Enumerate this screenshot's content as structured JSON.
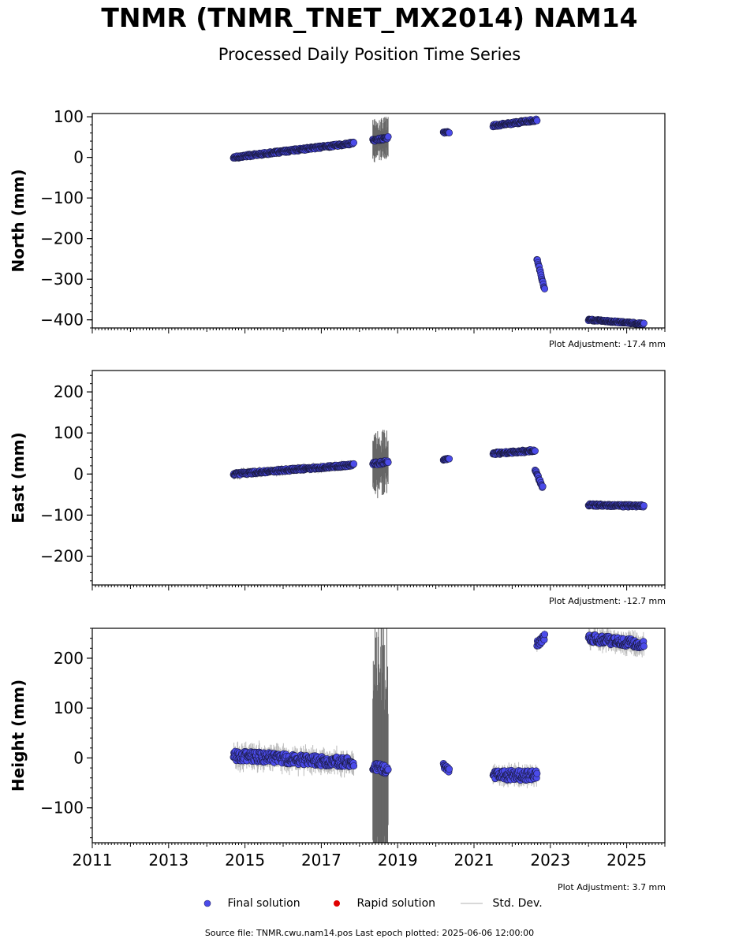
{
  "title": "TNMR (TNMR_TNET_MX2014) NAM14",
  "subtitle": "Processed Daily Position Time Series",
  "legend": {
    "final": "Final solution",
    "rapid": "Rapid solution",
    "std": "Std. Dev."
  },
  "source_text": "Source file: TNMR.cwu.nam14.pos  Last epoch plotted: 2025-06-06 12:00:00",
  "colors": {
    "final": "#4b4bea",
    "rapid": "#e00000",
    "std": "#888888"
  },
  "chart_data": [
    {
      "type": "scatter",
      "ylabel": "North (mm)",
      "adjustment": "Plot Adjustment: -17.4 mm",
      "xlim": [
        2011,
        2026
      ],
      "ylim": [
        -420,
        108
      ],
      "yticks": [
        100,
        0,
        -100,
        -200,
        -300,
        -400
      ],
      "ytick_labels": [
        "100",
        "0",
        "−100",
        "−200",
        "−300",
        "−400"
      ],
      "segments": [
        {
          "x0": 2014.7,
          "x1": 2017.85,
          "y0": 0,
          "y1": 35,
          "noise": 3,
          "err": 8
        },
        {
          "x0": 2018.35,
          "x1": 2018.75,
          "y0": 42,
          "y1": 48,
          "noise": 3,
          "err": 45
        },
        {
          "x0": 2020.2,
          "x1": 2020.35,
          "y0": 62,
          "y1": 62,
          "noise": 2,
          "err": 4
        },
        {
          "x0": 2021.5,
          "x1": 2022.65,
          "y0": 78,
          "y1": 92,
          "noise": 3,
          "err": 5
        },
        {
          "x0": 2022.65,
          "x1": 2022.85,
          "y0": -250,
          "y1": -325,
          "noise": 3,
          "err": 5
        },
        {
          "x0": 2024.0,
          "x1": 2025.45,
          "y0": -400,
          "y1": -410,
          "noise": 2,
          "err": 4
        }
      ]
    },
    {
      "type": "scatter",
      "ylabel": "East (mm)",
      "adjustment": "Plot Adjustment: -12.7 mm",
      "xlim": [
        2011,
        2026
      ],
      "ylim": [
        -270,
        252
      ],
      "yticks": [
        200,
        100,
        0,
        -100,
        -200
      ],
      "ytick_labels": [
        "200",
        "100",
        "0",
        "−100",
        "−200"
      ],
      "segments": [
        {
          "x0": 2014.7,
          "x1": 2017.85,
          "y0": 0,
          "y1": 22,
          "noise": 3,
          "err": 10
        },
        {
          "x0": 2018.35,
          "x1": 2018.75,
          "y0": 25,
          "y1": 30,
          "noise": 4,
          "err": 70
        },
        {
          "x0": 2020.2,
          "x1": 2020.35,
          "y0": 35,
          "y1": 37,
          "noise": 2,
          "err": 4
        },
        {
          "x0": 2021.5,
          "x1": 2022.6,
          "y0": 50,
          "y1": 57,
          "noise": 3,
          "err": 5
        },
        {
          "x0": 2022.6,
          "x1": 2022.8,
          "y0": 10,
          "y1": -33,
          "noise": 3,
          "err": 5
        },
        {
          "x0": 2024.0,
          "x1": 2025.45,
          "y0": -75,
          "y1": -78,
          "noise": 3,
          "err": 4
        }
      ]
    },
    {
      "type": "scatter",
      "ylabel": "Height (mm)",
      "adjustment": "Plot Adjustment: 3.7 mm",
      "xlim": [
        2011,
        2026
      ],
      "ylim": [
        -170,
        260
      ],
      "yticks": [
        200,
        100,
        0,
        -100
      ],
      "ytick_labels": [
        "200",
        "100",
        "0",
        "−100"
      ],
      "xticks": [
        2011,
        2013,
        2015,
        2017,
        2019,
        2021,
        2023,
        2025
      ],
      "xtick_labels": [
        "2011",
        "2013",
        "2015",
        "2017",
        "2019",
        "2021",
        "2023",
        "2025"
      ],
      "segments": [
        {
          "x0": 2014.7,
          "x1": 2017.85,
          "y0": 5,
          "y1": -10,
          "noise": 10,
          "err": 20
        },
        {
          "x0": 2018.35,
          "x1": 2018.75,
          "y0": -15,
          "y1": -25,
          "noise": 8,
          "err": 260
        },
        {
          "x0": 2020.2,
          "x1": 2020.35,
          "y0": -15,
          "y1": -25,
          "noise": 4,
          "err": 6
        },
        {
          "x0": 2021.5,
          "x1": 2022.65,
          "y0": -35,
          "y1": -35,
          "noise": 10,
          "err": 15
        },
        {
          "x0": 2022.65,
          "x1": 2022.85,
          "y0": 230,
          "y1": 240,
          "noise": 8,
          "err": 10
        },
        {
          "x0": 2024.0,
          "x1": 2025.45,
          "y0": 240,
          "y1": 228,
          "noise": 8,
          "err": 18
        }
      ]
    }
  ]
}
